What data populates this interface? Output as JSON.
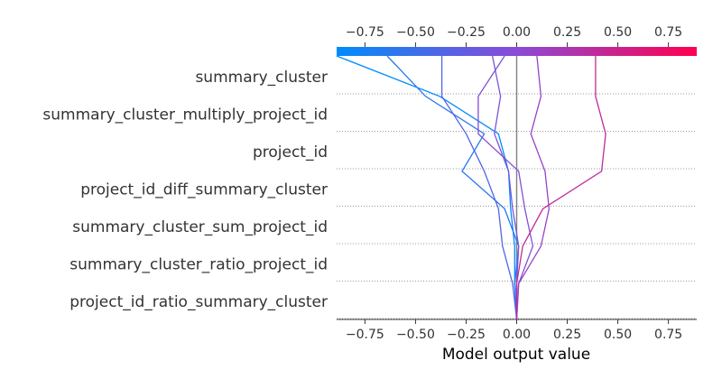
{
  "chart_data": {
    "type": "line",
    "subtype": "decision_plot",
    "xlabel": "Model output value",
    "xlim": [
      -0.89,
      0.89
    ],
    "x_ticks": [
      -0.75,
      -0.5,
      -0.25,
      0.0,
      0.25,
      0.5,
      0.75
    ],
    "x_tick_labels": [
      "−0.75",
      "−0.50",
      "−0.25",
      "0.00",
      "0.25",
      "0.50",
      "0.75"
    ],
    "base_value": 0.0,
    "features": [
      "summary_cluster",
      "summary_cluster_multiply_project_id",
      "project_id",
      "project_id_diff_summary_cluster",
      "summary_cluster_sum_project_id",
      "summary_cluster_ratio_project_id",
      "project_id_ratio_summary_cluster"
    ],
    "colorbar": {
      "colors": [
        "#008bfb",
        "#8b4bd6",
        "#ff0051"
      ],
      "range": [
        -0.89,
        0.89
      ]
    },
    "series": [
      {
        "values": [
          0.0,
          -0.01,
          -0.01,
          -0.03,
          -0.04,
          -0.09,
          -0.38,
          -0.89
        ]
      },
      {
        "values": [
          0.0,
          -0.01,
          0.01,
          -0.06,
          -0.27,
          -0.16,
          -0.45,
          -0.64
        ]
      },
      {
        "values": [
          0.0,
          -0.02,
          -0.07,
          -0.09,
          -0.16,
          -0.25,
          -0.37,
          -0.37
        ]
      },
      {
        "values": [
          0.0,
          0.0,
          0.01,
          -0.02,
          -0.04,
          -0.11,
          -0.08,
          -0.12
        ]
      },
      {
        "values": [
          0.0,
          0.01,
          0.08,
          0.04,
          0.01,
          -0.19,
          -0.19,
          -0.06
        ]
      },
      {
        "values": [
          0.0,
          0.01,
          0.12,
          0.16,
          0.14,
          0.07,
          0.12,
          0.1
        ]
      },
      {
        "values": [
          0.0,
          0.0,
          0.03,
          0.13,
          0.42,
          0.44,
          0.39,
          0.39
        ]
      }
    ]
  }
}
